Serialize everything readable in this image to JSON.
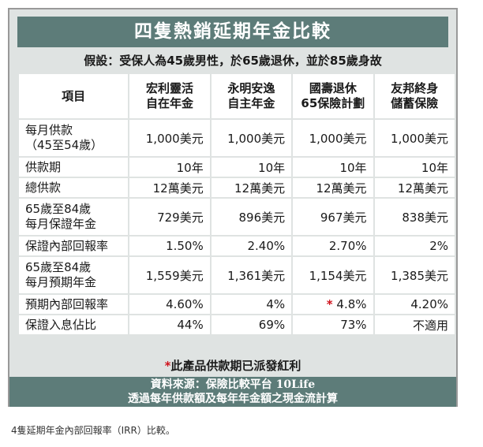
{
  "title": "四隻熱銷延期年金比較",
  "subtitle": "假設：受保人為45歲男性，於65歲退休，並於85歲身故",
  "table": {
    "header": {
      "item": "項目",
      "products": [
        {
          "line1": "宏利靈活",
          "line2": "自在年金"
        },
        {
          "line1": "永明安逸",
          "line2": "自主年金"
        },
        {
          "line1": "國壽退休",
          "line2": "65保險計劃"
        },
        {
          "line1": "友邦終身",
          "line2": "儲蓄保險"
        }
      ]
    },
    "rows": [
      {
        "label1": "每月供款",
        "label2": "（45至54歲）",
        "values": [
          "1,000美元",
          "1,000美元",
          "1,000美元",
          "1,000美元"
        ]
      },
      {
        "label1": "供款期",
        "values": [
          "10年",
          "10年",
          "10年",
          "10年"
        ]
      },
      {
        "label1": "總供款",
        "values": [
          "12萬美元",
          "12萬美元",
          "12萬美元",
          "12萬美元"
        ]
      },
      {
        "label1": "65歲至84歲",
        "label2": "每月保證年金",
        "values": [
          "729美元",
          "896美元",
          "967美元",
          "838美元"
        ]
      },
      {
        "label1": "保證內部回報率",
        "values": [
          "1.50%",
          "2.40%",
          "2.70%",
          "2%"
        ]
      },
      {
        "label1": "65歲至84歲",
        "label2": "每月預期年金",
        "values": [
          "1,559美元",
          "1,361美元",
          "1,154美元",
          "1,385美元"
        ]
      },
      {
        "label1": "預期內部回報率",
        "values": [
          "4.60%",
          "4%",
          "4.8%",
          "4.20%"
        ],
        "star_on": 2,
        "star": "*"
      },
      {
        "label1": "保證入息佔比",
        "values": [
          "44%",
          "69%",
          "73%",
          "不適用"
        ]
      }
    ]
  },
  "note": {
    "star": "*",
    "text": "此產品供款期已派發紅利"
  },
  "source": {
    "line1": "資料來源：保險比較平台 10Life",
    "line2": "透過每年供款額及每年年金額之現金流計算"
  },
  "caption": "4隻延期年金內部回報率（IRR）比較。",
  "colors": {
    "header_bar": "#5d7c79",
    "panel_bg": "#dfe3e2",
    "star": "#d0121c"
  }
}
